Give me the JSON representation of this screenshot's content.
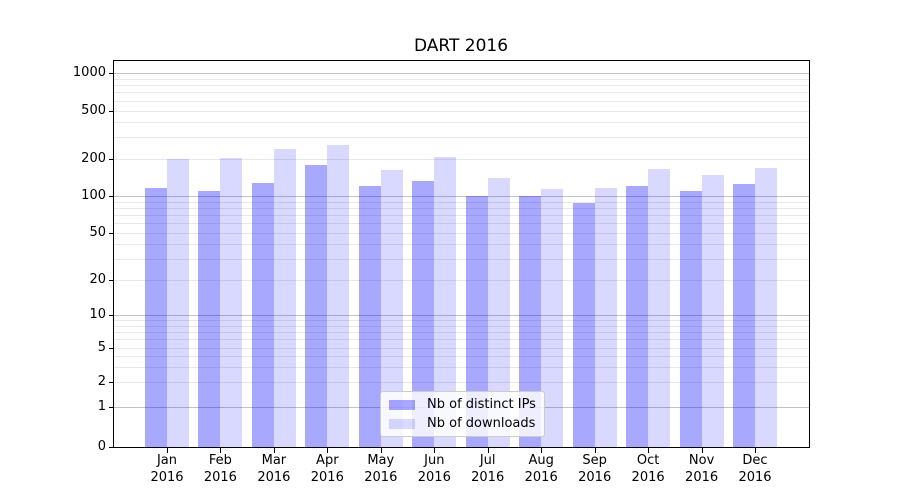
{
  "title": "DART 2016",
  "chart_data": {
    "type": "bar",
    "title": "DART 2016",
    "categories": [
      "Jan 2016",
      "Feb 2016",
      "Mar 2016",
      "Apr 2016",
      "May 2016",
      "Jun 2016",
      "Jul 2016",
      "Aug 2016",
      "Sep 2016",
      "Oct 2016",
      "Nov 2016",
      "Dec 2016"
    ],
    "series": [
      {
        "name": "Nb of distinct IPs",
        "fill": "rgba(0,0,255,0.34)",
        "approx_hex": "#a8a8f6",
        "values": [
          117,
          110,
          127,
          178,
          120,
          131,
          101,
          100,
          87,
          121,
          110,
          125
        ]
      },
      {
        "name": "Nb of downloads",
        "fill": "rgba(0,0,255,0.15)",
        "approx_hex": "#d8d8fa",
        "values": [
          199,
          201,
          242,
          260,
          163,
          207,
          139,
          113,
          117,
          166,
          148,
          168
        ]
      }
    ],
    "xlabel": "",
    "ylabel": "",
    "yscale": "symlog",
    "yticks": [
      1000,
      500,
      200,
      100,
      50,
      20,
      10,
      5,
      2,
      1,
      0
    ],
    "ylim": [
      0,
      1250
    ],
    "grid": "horizontal",
    "legend_position": "lower-center",
    "colors": {
      "major_grid": "#c3c3c3",
      "minor_grid": "#e8e8e8",
      "axis": "#000000",
      "legend_border": "#cccccc"
    }
  }
}
